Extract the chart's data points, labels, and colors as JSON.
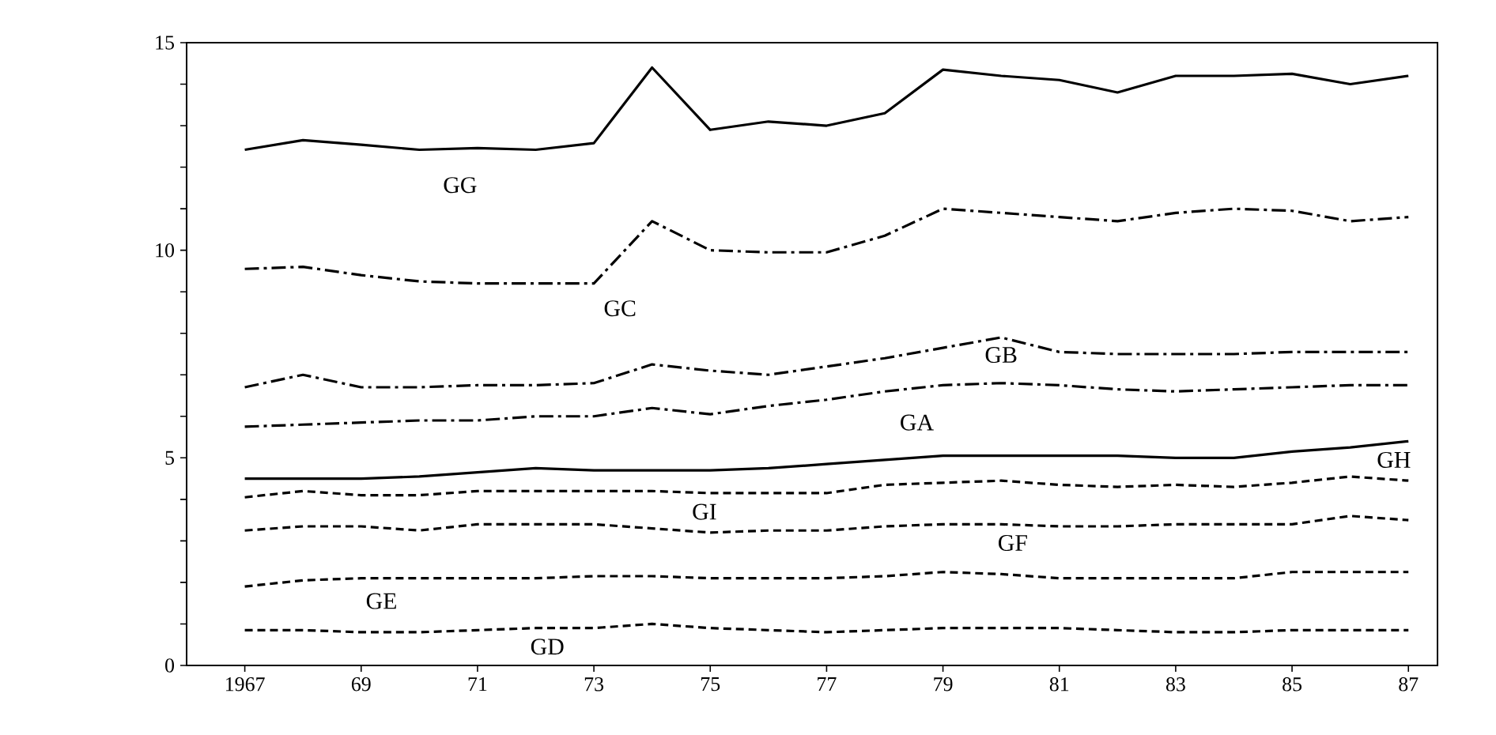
{
  "chart_data": {
    "type": "line",
    "x": [
      1967,
      1968,
      1969,
      1970,
      1971,
      1972,
      1973,
      1974,
      1975,
      1976,
      1977,
      1978,
      1979,
      1980,
      1981,
      1982,
      1983,
      1984,
      1985,
      1986,
      1987
    ],
    "xlim": [
      1966,
      1987.5
    ],
    "ylim": [
      0,
      15
    ],
    "xticks": [
      1967,
      {
        "value": 1969,
        "label": "69"
      },
      {
        "value": 1971,
        "label": "71"
      },
      {
        "value": 1973,
        "label": "73"
      },
      {
        "value": 1975,
        "label": "75"
      },
      {
        "value": 1977,
        "label": "77"
      },
      {
        "value": 1979,
        "label": "79"
      },
      {
        "value": 1981,
        "label": "81"
      },
      {
        "value": 1983,
        "label": "83"
      },
      {
        "value": 1985,
        "label": "85"
      },
      {
        "value": 1987,
        "label": "87"
      }
    ],
    "yticks": [
      0,
      {
        "value": 1,
        "label": null
      },
      {
        "value": 2,
        "label": null
      },
      {
        "value": 3,
        "label": null
      },
      {
        "value": 4,
        "label": null
      },
      5,
      {
        "value": 6,
        "label": null
      },
      {
        "value": 7,
        "label": null
      },
      {
        "value": 8,
        "label": null
      },
      {
        "value": 9,
        "label": null
      },
      10,
      {
        "value": 11,
        "label": null
      },
      {
        "value": 12,
        "label": null
      },
      {
        "value": 13,
        "label": null
      },
      {
        "value": 14,
        "label": null
      },
      15
    ],
    "series": [
      {
        "name": "GG",
        "color": "#000000",
        "line_style": "solid",
        "values": [
          12.42,
          12.65,
          12.54,
          12.42,
          12.46,
          12.42,
          12.58,
          14.4,
          12.9,
          13.1,
          13.0,
          13.3,
          14.35,
          14.2,
          14.1,
          13.8,
          14.2,
          14.2,
          14.25,
          14.0,
          14.2
        ]
      },
      {
        "name": "GC",
        "color": "#000000",
        "line_style": "dashdot",
        "values": [
          9.55,
          9.6,
          9.4,
          9.25,
          9.2,
          9.2,
          9.2,
          10.7,
          10.0,
          9.95,
          9.95,
          10.35,
          11.0,
          10.9,
          10.8,
          10.7,
          10.9,
          11.0,
          10.95,
          10.7,
          10.8
        ]
      },
      {
        "name": "GB",
        "color": "#000000",
        "line_style": "dashdot",
        "values": [
          6.7,
          7.0,
          6.7,
          6.7,
          6.75,
          6.75,
          6.8,
          7.25,
          7.1,
          7.0,
          7.2,
          7.4,
          7.65,
          7.9,
          7.55,
          7.5,
          7.5,
          7.5,
          7.55,
          7.55,
          7.55
        ]
      },
      {
        "name": "GA",
        "color": "#000000",
        "line_style": "dashdot",
        "values": [
          5.75,
          5.8,
          5.85,
          5.9,
          5.9,
          6.0,
          6.0,
          6.2,
          6.05,
          6.25,
          6.4,
          6.6,
          6.75,
          6.8,
          6.75,
          6.65,
          6.6,
          6.65,
          6.7,
          6.75,
          6.75
        ]
      },
      {
        "name": "GH",
        "color": "#000000",
        "line_style": "solid",
        "values": [
          4.5,
          4.5,
          4.5,
          4.55,
          4.65,
          4.75,
          4.7,
          4.7,
          4.7,
          4.75,
          4.85,
          4.95,
          5.05,
          5.05,
          5.05,
          5.05,
          5.0,
          5.0,
          5.15,
          5.25,
          5.4
        ]
      },
      {
        "name": "GI",
        "color": "#000000",
        "line_style": "dashed",
        "values": [
          4.05,
          4.2,
          4.1,
          4.1,
          4.2,
          4.2,
          4.2,
          4.2,
          4.15,
          4.15,
          4.15,
          4.35,
          4.4,
          4.45,
          4.35,
          4.3,
          4.35,
          4.3,
          4.4,
          4.55,
          4.45
        ]
      },
      {
        "name": "GF",
        "color": "#000000",
        "line_style": "dashed",
        "values": [
          3.25,
          3.35,
          3.35,
          3.25,
          3.4,
          3.4,
          3.4,
          3.3,
          3.2,
          3.25,
          3.25,
          3.35,
          3.4,
          3.4,
          3.35,
          3.35,
          3.4,
          3.4,
          3.4,
          3.6,
          3.5
        ]
      },
      {
        "name": "GE",
        "color": "#000000",
        "line_style": "dashed",
        "values": [
          1.9,
          2.05,
          2.1,
          2.1,
          2.1,
          2.1,
          2.15,
          2.15,
          2.1,
          2.1,
          2.1,
          2.15,
          2.25,
          2.2,
          2.1,
          2.1,
          2.1,
          2.1,
          2.25,
          2.25,
          2.25
        ]
      },
      {
        "name": "GD",
        "color": "#000000",
        "line_style": "dashed",
        "values": [
          0.85,
          0.85,
          0.8,
          0.8,
          0.85,
          0.9,
          0.9,
          1.0,
          0.9,
          0.85,
          0.8,
          0.85,
          0.9,
          0.9,
          0.9,
          0.85,
          0.8,
          0.8,
          0.85,
          0.85,
          0.85
        ]
      }
    ],
    "grid": false,
    "marker": "none"
  }
}
